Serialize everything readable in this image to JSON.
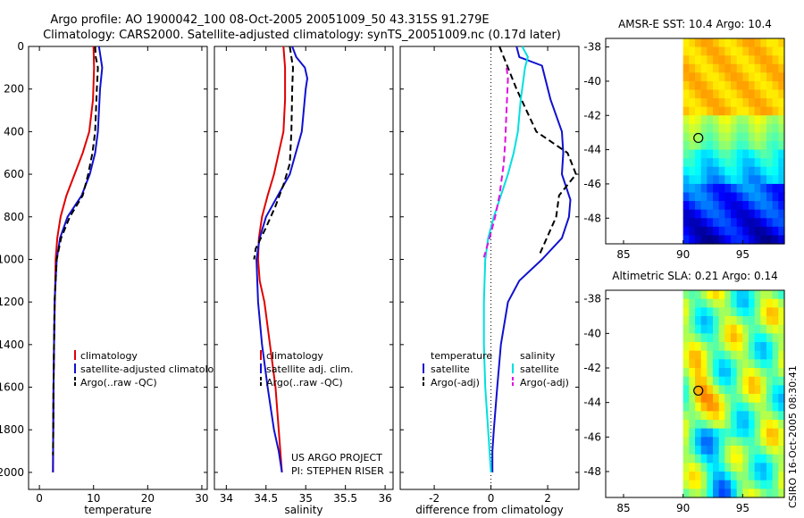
{
  "header": {
    "line1": "Argo profile: AO 1900042_100 08-Oct-2005 20051009_50 43.315S 91.279E",
    "line2": "Climatology: CARS2000. Satellite-adjusted climatology: synTS_20051009.nc (0.17d later)"
  },
  "footer": {
    "project": "US ARGO PROJECT",
    "pi": "PI: STEPHEN RISER",
    "credit": "CSIRO 16-Oct-2005 08:30:41"
  },
  "colors": {
    "clim": "#e00000",
    "sat": "#1010d0",
    "argo": "#000000",
    "cyan": "#00e0e0",
    "magenta": "#e010e0"
  },
  "chart_data": [
    {
      "type": "line",
      "id": "temperature",
      "xlabel": "temperature",
      "ylabel": "",
      "xlim": [
        -2,
        31
      ],
      "ylim": [
        2080,
        0
      ],
      "xticks": [
        0,
        10,
        20,
        30
      ],
      "yticks": [
        0,
        200,
        400,
        600,
        800,
        1000,
        1200,
        1400,
        1600,
        1800,
        2000
      ],
      "series": [
        {
          "name": "climatology",
          "color": "clim",
          "dash": false,
          "x": [
            10.0,
            10.1,
            9.9,
            9.2,
            8.0,
            6.5,
            5.0,
            3.9,
            3.3,
            3.0,
            2.85,
            2.7,
            2.6,
            2.55,
            2.5
          ],
          "y": [
            0,
            100,
            250,
            400,
            500,
            600,
            700,
            800,
            900,
            1000,
            1200,
            1400,
            1600,
            1800,
            2000
          ]
        },
        {
          "name": "satellite-adjusted climatology",
          "color": "sat",
          "dash": false,
          "x": [
            11.0,
            11.3,
            11.6,
            11.2,
            10.8,
            10.3,
            9.3,
            7.8,
            5.2,
            3.8,
            3.2,
            3.0,
            2.8,
            2.7,
            2.6,
            2.55,
            2.5
          ],
          "y": [
            0,
            50,
            100,
            200,
            400,
            500,
            600,
            700,
            800,
            900,
            1000,
            1100,
            1200,
            1400,
            1600,
            1800,
            2000
          ]
        },
        {
          "name": "Argo(..raw -QC)",
          "color": "argo",
          "dash": true,
          "x": [
            10.3,
            10.4,
            10.8,
            10.6,
            10.3,
            9.8,
            9.0,
            8.0,
            5.6,
            4.0,
            3.2,
            3.0,
            2.8,
            2.7,
            2.6,
            2.55,
            2.5
          ],
          "y": [
            0,
            50,
            100,
            200,
            400,
            500,
            600,
            700,
            800,
            900,
            1000,
            1100,
            1200,
            1400,
            1600,
            1800,
            1920
          ]
        }
      ],
      "legend": {
        "placement": "lower-right",
        "entries": [
          {
            "label": "climatology",
            "color": "clim",
            "dash": false
          },
          {
            "label": "satellite-adjusted climatology",
            "color": "sat",
            "dash": false
          },
          {
            "label": "Argo(..raw -QC)",
            "color": "argo",
            "dash": true
          }
        ]
      }
    },
    {
      "type": "line",
      "id": "salinity",
      "xlabel": "salinity",
      "ylabel": "",
      "xlim": [
        33.85,
        36.1
      ],
      "ylim": [
        2080,
        0
      ],
      "xticks": [
        34,
        34.5,
        35,
        35.5,
        36
      ],
      "xtick_labels": [
        "34",
        "34.5",
        "35",
        "35.5",
        "36"
      ],
      "series": [
        {
          "name": "climatology",
          "color": "clim",
          "dash": false,
          "x": [
            34.72,
            34.74,
            34.74,
            34.72,
            34.66,
            34.6,
            34.52,
            34.45,
            34.41,
            34.4,
            34.42,
            34.48,
            34.55,
            34.62,
            34.66,
            34.7
          ],
          "y": [
            0,
            100,
            250,
            400,
            500,
            600,
            700,
            800,
            900,
            1000,
            1100,
            1200,
            1400,
            1600,
            1800,
            2000
          ]
        },
        {
          "name": "satellite adj. clim.",
          "color": "sat",
          "dash": false,
          "x": [
            34.83,
            34.88,
            34.99,
            35.02,
            35.0,
            34.95,
            34.8,
            34.65,
            34.5,
            34.42,
            34.38,
            34.39,
            34.4,
            34.45,
            34.52,
            34.6,
            34.66,
            34.7
          ],
          "y": [
            0,
            50,
            100,
            150,
            200,
            400,
            600,
            700,
            800,
            900,
            1000,
            1100,
            1200,
            1400,
            1600,
            1800,
            1900,
            2000
          ]
        },
        {
          "name": "Argo(..raw -QC)",
          "color": "argo",
          "dash": true,
          "x": [
            34.8,
            34.82,
            34.84,
            34.83,
            34.82,
            34.8,
            34.72,
            34.62,
            34.5,
            34.37,
            34.35
          ],
          "y": [
            0,
            50,
            100,
            200,
            400,
            550,
            650,
            750,
            850,
            950,
            1000
          ]
        }
      ],
      "legend": {
        "placement": "lower-right",
        "entries": [
          {
            "label": "climatology",
            "color": "clim",
            "dash": false
          },
          {
            "label": "satellite adj. clim.",
            "color": "sat",
            "dash": false
          },
          {
            "label": "Argo(..raw -QC)",
            "color": "argo",
            "dash": true
          }
        ]
      }
    },
    {
      "type": "line",
      "id": "difference",
      "xlabel": "difference from climatology",
      "ylabel": "",
      "xlim": [
        -3.2,
        3.1
      ],
      "ylim": [
        2080,
        0
      ],
      "xticks": [
        -2,
        0,
        2
      ],
      "series": [
        {
          "name": "temperature satellite",
          "color": "sat",
          "dash": false,
          "x": [
            0.9,
            1.0,
            1.8,
            2.1,
            2.5,
            2.55,
            2.5,
            2.8,
            2.75,
            2.5,
            1.8,
            1.0,
            0.6,
            0.35,
            0.22,
            0.1,
            0.05,
            0.05
          ],
          "y": [
            0,
            50,
            90,
            250,
            400,
            500,
            600,
            720,
            800,
            900,
            1000,
            1100,
            1200,
            1400,
            1600,
            1800,
            1900,
            2000
          ]
        },
        {
          "name": "temperature Argo(-adj)",
          "color": "argo",
          "dash": true,
          "x": [
            0.3,
            0.6,
            0.9,
            1.6,
            2.7,
            3.0,
            2.4,
            2.3,
            1.7
          ],
          "y": [
            0,
            100,
            200,
            400,
            500,
            600,
            700,
            800,
            980
          ]
        },
        {
          "name": "salinity satellite",
          "color": "cyan",
          "dash": false,
          "x": [
            1.1,
            1.3,
            1.2,
            1.05,
            0.95,
            0.8,
            0.6,
            0.35,
            0.1,
            -0.1,
            -0.2,
            -0.25,
            -0.25,
            -0.2,
            -0.1,
            0.0
          ],
          "y": [
            0,
            50,
            100,
            250,
            400,
            500,
            600,
            700,
            800,
            900,
            1000,
            1200,
            1400,
            1600,
            1800,
            2000
          ]
        },
        {
          "name": "salinity Argo(-adj)",
          "color": "magenta",
          "dash": true,
          "x": [
            0.55,
            0.6,
            0.55,
            0.5,
            0.45,
            0.3,
            0.15,
            -0.05,
            -0.25
          ],
          "y": [
            100,
            150,
            300,
            450,
            550,
            700,
            800,
            900,
            990
          ]
        }
      ],
      "zero_line": true,
      "legend": {
        "placement": "lower-center",
        "columns": [
          {
            "heading": "temperature",
            "entries": [
              {
                "label": "satellite",
                "color": "sat",
                "dash": false
              },
              {
                "label": "Argo(-adj)",
                "color": "argo",
                "dash": true
              }
            ]
          },
          {
            "heading": "salinity",
            "entries": [
              {
                "label": "satellite",
                "color": "cyan",
                "dash": false
              },
              {
                "label": "Argo(-adj)",
                "color": "magenta",
                "dash": true
              }
            ]
          }
        ]
      }
    },
    {
      "type": "heatmap",
      "id": "sst-map",
      "title": "AMSR-E SST: 10.4 Argo: 10.4",
      "xlim": [
        83.5,
        98.5
      ],
      "ylim": [
        -49.5,
        -37.5
      ],
      "xticks": [
        85,
        90,
        95
      ],
      "yticks": [
        -38,
        -40,
        -42,
        -44,
        -46,
        -48
      ],
      "data_lon_range": [
        90,
        98.5
      ],
      "field": "sst",
      "marker": {
        "lon": 91.279,
        "lat": -43.315
      }
    },
    {
      "type": "heatmap",
      "id": "sla-map",
      "title": "Altimetric SLA: 0.21 Argo: 0.14",
      "xlim": [
        83.5,
        98.5
      ],
      "ylim": [
        -49.5,
        -37.5
      ],
      "xticks": [
        85,
        90,
        95
      ],
      "yticks": [
        -38,
        -40,
        -42,
        -44,
        -46,
        -48
      ],
      "data_lon_range": [
        90,
        98.5
      ],
      "field": "sla",
      "marker": {
        "lon": 91.279,
        "lat": -43.315
      }
    }
  ]
}
